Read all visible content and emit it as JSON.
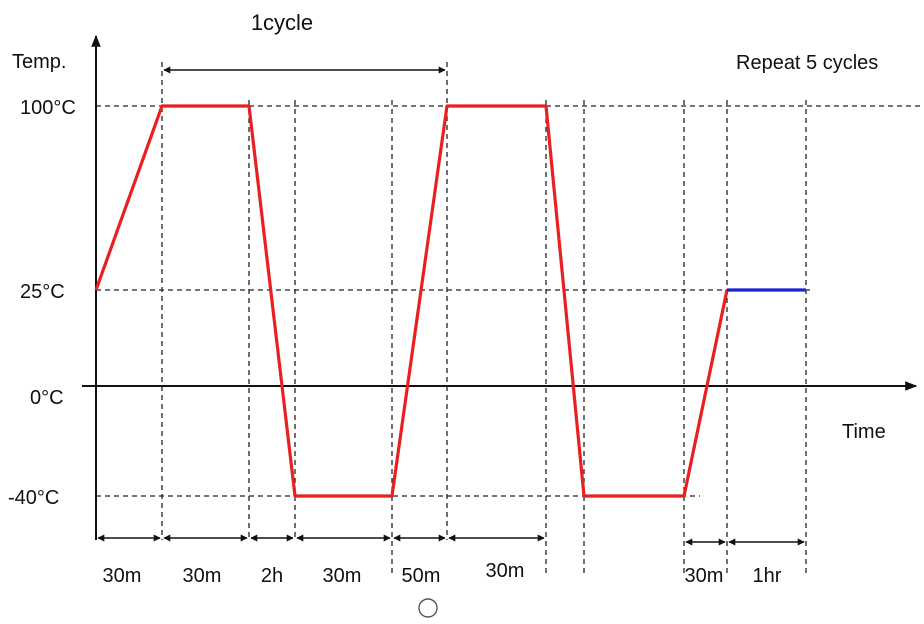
{
  "diagram": {
    "cycle_label": "1cycle",
    "repeat_label": "Repeat 5 cycles",
    "y_axis_label": "Temp.",
    "x_axis_label": "Time",
    "temperatures": {
      "t100": "100°C",
      "t25": "25°C",
      "t0": "0°C",
      "tm40": "-40°C"
    },
    "durations": [
      "30m",
      "30m",
      "2h",
      "30m",
      "50m",
      "30m",
      "30m",
      "1hr"
    ],
    "colors": {
      "profile": "#e8201f",
      "final_hold": "#1a22d6",
      "axes": "#111111"
    }
  }
}
